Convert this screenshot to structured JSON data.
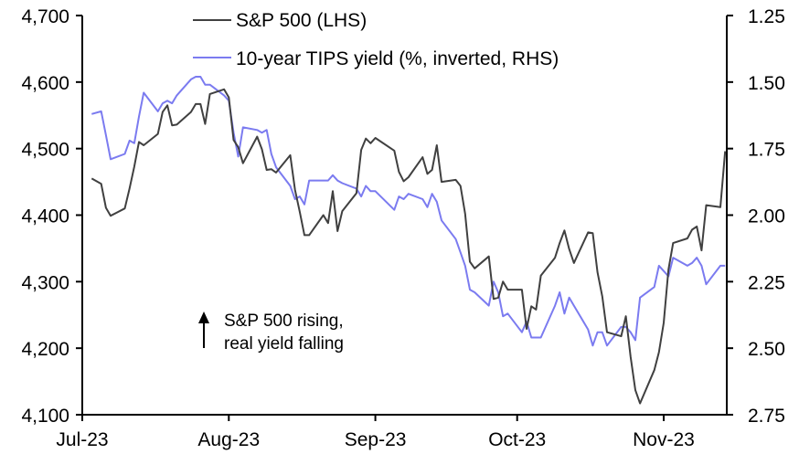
{
  "chart_data": {
    "type": "line",
    "title": "",
    "xlabel": "",
    "ylabel_left": "",
    "ylabel_right": "",
    "x_ticks": [
      "Jul-23",
      "Aug-23",
      "Sep-23",
      "Oct-23",
      "Nov-23"
    ],
    "x_tick_dates": [
      "2023-07-01",
      "2023-08-01",
      "2023-09-01",
      "2023-10-01",
      "2023-11-01"
    ],
    "x_range": [
      "2023-07-01",
      "2023-11-14"
    ],
    "y_left": {
      "range": [
        4100,
        4700
      ],
      "ticks": [
        4100,
        4200,
        4300,
        4400,
        4500,
        4600,
        4700
      ],
      "tick_labels": [
        "4,100",
        "4,200",
        "4,300",
        "4,400",
        "4,500",
        "4,600",
        "4,700"
      ]
    },
    "y_right": {
      "range": [
        1.25,
        2.75
      ],
      "inverted": true,
      "ticks": [
        1.25,
        1.5,
        1.75,
        2.0,
        2.25,
        2.5,
        2.75
      ],
      "tick_labels": [
        "1.25",
        "1.50",
        "1.75",
        "2.00",
        "2.25",
        "2.50",
        "2.75"
      ]
    },
    "grid": false,
    "legend": {
      "placement": "top-center",
      "entries": [
        "S&P 500 (LHS)",
        "10-year TIPS yield (%, inverted, RHS)"
      ]
    },
    "annotation": {
      "arrow": "up",
      "lines": [
        "S&P 500 rising,",
        "real yield falling"
      ]
    },
    "series": [
      {
        "name": "S&P 500 (LHS)",
        "axis": "left",
        "color": "#404040",
        "dates": [
          "2023-07-03",
          "2023-07-05",
          "2023-07-06",
          "2023-07-07",
          "2023-07-10",
          "2023-07-11",
          "2023-07-12",
          "2023-07-13",
          "2023-07-14",
          "2023-07-17",
          "2023-07-18",
          "2023-07-19",
          "2023-07-20",
          "2023-07-21",
          "2023-07-24",
          "2023-07-25",
          "2023-07-26",
          "2023-07-27",
          "2023-07-28",
          "2023-07-31",
          "2023-08-01",
          "2023-08-02",
          "2023-08-03",
          "2023-08-04",
          "2023-08-07",
          "2023-08-08",
          "2023-08-09",
          "2023-08-10",
          "2023-08-11",
          "2023-08-14",
          "2023-08-15",
          "2023-08-16",
          "2023-08-17",
          "2023-08-18",
          "2023-08-21",
          "2023-08-22",
          "2023-08-23",
          "2023-08-24",
          "2023-08-25",
          "2023-08-28",
          "2023-08-29",
          "2023-08-30",
          "2023-08-31",
          "2023-09-01",
          "2023-09-05",
          "2023-09-06",
          "2023-09-07",
          "2023-09-08",
          "2023-09-11",
          "2023-09-12",
          "2023-09-13",
          "2023-09-14",
          "2023-09-15",
          "2023-09-18",
          "2023-09-19",
          "2023-09-20",
          "2023-09-21",
          "2023-09-22",
          "2023-09-25",
          "2023-09-26",
          "2023-09-27",
          "2023-09-28",
          "2023-09-29",
          "2023-10-02",
          "2023-10-03",
          "2023-10-04",
          "2023-10-05",
          "2023-10-06",
          "2023-10-09",
          "2023-10-10",
          "2023-10-11",
          "2023-10-12",
          "2023-10-13",
          "2023-10-16",
          "2023-10-17",
          "2023-10-18",
          "2023-10-19",
          "2023-10-20",
          "2023-10-23",
          "2023-10-24",
          "2023-10-25",
          "2023-10-26",
          "2023-10-27",
          "2023-10-30",
          "2023-10-31",
          "2023-11-01",
          "2023-11-02",
          "2023-11-03",
          "2023-11-06",
          "2023-11-07",
          "2023-11-08",
          "2023-11-09",
          "2023-11-10",
          "2023-11-13",
          "2023-11-14"
        ],
        "values": [
          4455,
          4447,
          4411,
          4399,
          4410,
          4440,
          4473,
          4510,
          4505,
          4522,
          4555,
          4565,
          4535,
          4536,
          4555,
          4567,
          4567,
          4537,
          4582,
          4589,
          4577,
          4513,
          4502,
          4478,
          4518,
          4499,
          4468,
          4469,
          4464,
          4490,
          4438,
          4405,
          4370,
          4370,
          4400,
          4388,
          4436,
          4376,
          4406,
          4433,
          4498,
          4515,
          4508,
          4516,
          4497,
          4465,
          4451,
          4457,
          4487,
          4462,
          4468,
          4505,
          4450,
          4453,
          4444,
          4402,
          4330,
          4320,
          4338,
          4274,
          4276,
          4300,
          4288,
          4288,
          4229,
          4263,
          4258,
          4309,
          4336,
          4358,
          4377,
          4349,
          4328,
          4374,
          4373,
          4314,
          4278,
          4224,
          4218,
          4248,
          4187,
          4137,
          4117,
          4167,
          4194,
          4238,
          4318,
          4358,
          4365,
          4378,
          4383,
          4347,
          4415,
          4412,
          4496
        ],
        "values_note": "read from line trace; last points approximate"
      },
      {
        "name": "10-year TIPS yield (%, inverted, RHS)",
        "axis": "right",
        "color": "#7b7bf0",
        "dates": [
          "2023-07-03",
          "2023-07-05",
          "2023-07-06",
          "2023-07-07",
          "2023-07-10",
          "2023-07-11",
          "2023-07-12",
          "2023-07-13",
          "2023-07-14",
          "2023-07-17",
          "2023-07-18",
          "2023-07-19",
          "2023-07-20",
          "2023-07-21",
          "2023-07-24",
          "2023-07-25",
          "2023-07-26",
          "2023-07-27",
          "2023-07-28",
          "2023-07-31",
          "2023-08-01",
          "2023-08-02",
          "2023-08-03",
          "2023-08-04",
          "2023-08-07",
          "2023-08-08",
          "2023-08-09",
          "2023-08-10",
          "2023-08-11",
          "2023-08-14",
          "2023-08-15",
          "2023-08-16",
          "2023-08-17",
          "2023-08-18",
          "2023-08-21",
          "2023-08-22",
          "2023-08-23",
          "2023-08-24",
          "2023-08-25",
          "2023-08-28",
          "2023-08-29",
          "2023-08-30",
          "2023-08-31",
          "2023-09-01",
          "2023-09-05",
          "2023-09-06",
          "2023-09-07",
          "2023-09-08",
          "2023-09-11",
          "2023-09-12",
          "2023-09-13",
          "2023-09-14",
          "2023-09-15",
          "2023-09-18",
          "2023-09-19",
          "2023-09-20",
          "2023-09-21",
          "2023-09-22",
          "2023-09-25",
          "2023-09-26",
          "2023-09-27",
          "2023-09-28",
          "2023-09-29",
          "2023-10-02",
          "2023-10-03",
          "2023-10-04",
          "2023-10-05",
          "2023-10-06",
          "2023-10-09",
          "2023-10-10",
          "2023-10-11",
          "2023-10-12",
          "2023-10-13",
          "2023-10-16",
          "2023-10-17",
          "2023-10-18",
          "2023-10-19",
          "2023-10-20",
          "2023-10-23",
          "2023-10-24",
          "2023-10-25",
          "2023-10-26",
          "2023-10-27",
          "2023-10-30",
          "2023-10-31",
          "2023-11-01",
          "2023-11-02",
          "2023-11-03",
          "2023-11-06",
          "2023-11-07",
          "2023-11-08",
          "2023-11-09",
          "2023-11-10",
          "2023-11-13",
          "2023-11-14"
        ],
        "values": [
          1.62,
          1.61,
          1.7,
          1.79,
          1.77,
          1.72,
          1.73,
          1.63,
          1.54,
          1.61,
          1.58,
          1.57,
          1.58,
          1.55,
          1.49,
          1.48,
          1.48,
          1.51,
          1.51,
          1.55,
          1.57,
          1.69,
          1.78,
          1.67,
          1.68,
          1.69,
          1.68,
          1.77,
          1.82,
          1.89,
          1.94,
          1.93,
          1.96,
          1.87,
          1.87,
          1.87,
          1.85,
          1.87,
          1.88,
          1.9,
          1.93,
          1.89,
          1.91,
          1.91,
          1.98,
          1.93,
          1.94,
          1.92,
          1.94,
          1.97,
          1.92,
          1.95,
          2.02,
          2.09,
          2.14,
          2.19,
          2.28,
          2.29,
          2.34,
          2.25,
          2.29,
          2.38,
          2.37,
          2.44,
          2.4,
          2.46,
          2.46,
          2.46,
          2.34,
          2.29,
          2.37,
          2.31,
          2.34,
          2.43,
          2.49,
          2.44,
          2.44,
          2.49,
          2.42,
          2.42,
          2.44,
          2.47,
          2.31,
          2.27,
          2.19,
          2.21,
          2.23,
          2.16,
          2.19,
          2.18,
          2.16,
          2.19,
          2.26,
          2.19,
          2.19
        ],
        "values_note": "read from line trace; last points approximate"
      }
    ]
  }
}
